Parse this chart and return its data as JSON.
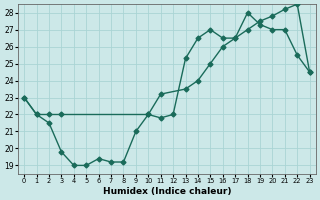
{
  "xlabel": "Humidex (Indice chaleur)",
  "xlim": [
    -0.5,
    23.5
  ],
  "ylim": [
    18.5,
    28.5
  ],
  "xticks": [
    0,
    1,
    2,
    3,
    4,
    5,
    6,
    7,
    8,
    9,
    10,
    11,
    12,
    13,
    14,
    15,
    16,
    17,
    18,
    19,
    20,
    21,
    22,
    23
  ],
  "yticks": [
    19,
    20,
    21,
    22,
    23,
    24,
    25,
    26,
    27,
    28
  ],
  "bg_color": "#cce8e8",
  "grid_color": "#aad4d4",
  "line_color": "#1a6b5a",
  "line1_x": [
    0,
    1,
    2,
    3,
    4,
    5,
    6,
    7,
    8,
    9,
    10,
    11,
    12,
    13,
    14,
    15,
    16,
    17,
    18,
    19,
    20,
    21,
    22,
    23
  ],
  "line1_y": [
    23,
    22,
    21.5,
    19.8,
    19,
    19,
    19.4,
    19.2,
    19.2,
    21,
    22,
    21.8,
    22,
    25.3,
    26.5,
    27.0,
    26.5,
    26.5,
    28.0,
    27.3,
    27.0,
    27.0,
    25.5,
    24.5
  ],
  "line2_x": [
    0,
    1,
    2,
    3,
    10,
    11,
    13,
    14,
    15,
    16,
    17,
    18,
    19,
    20,
    21,
    22,
    23
  ],
  "line2_y": [
    23,
    22,
    22,
    22,
    22,
    23.2,
    23.5,
    24.0,
    25.0,
    26.0,
    26.5,
    27.0,
    27.5,
    27.8,
    28.2,
    28.5,
    24.5
  ],
  "lw": 1.0,
  "ms": 2.5
}
